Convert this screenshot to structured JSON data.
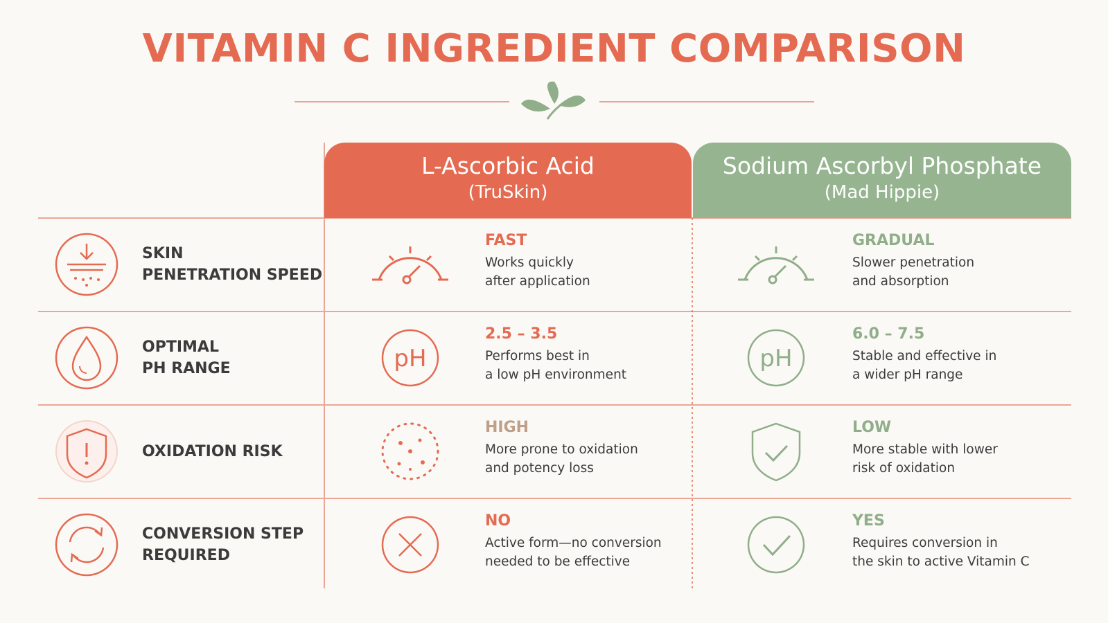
{
  "header": {
    "title": "VITAMIN C INGREDIENT COMPARISON"
  },
  "table": {
    "columns": [
      {
        "name": "L-Ascorbic Acid",
        "subtitle": "(TruSkin)",
        "color": "#e46b51"
      },
      {
        "name": "Sodium Ascorbyl Phosphate",
        "subtitle": "(Mad Hippie)",
        "color": "#95b48f"
      }
    ],
    "rows": [
      {
        "label": [
          "SKIN",
          "PENETRATION SPEED"
        ],
        "cells": [
          {
            "heading": "FAST",
            "color": "#e46b51",
            "lines": [
              "Works quickly",
              "after application"
            ]
          },
          {
            "heading": "GRADUAL",
            "color": "#8fae89",
            "lines": [
              "Slower penetration",
              "and absorption"
            ]
          }
        ]
      },
      {
        "label": [
          "OPTIMAL",
          "PH RANGE"
        ],
        "cells": [
          {
            "heading": "2.5 – 3.5",
            "color": "#e46b51",
            "lines": [
              "Performs best in",
              "a low pH environment"
            ]
          },
          {
            "heading": "6.0 – 7.5",
            "color": "#8fae89",
            "lines": [
              "Stable and effective in",
              "a wider pH range"
            ]
          }
        ]
      },
      {
        "label": [
          "OXIDATION RISK"
        ],
        "cells": [
          {
            "heading": "HIGH",
            "color": "#bf9f88",
            "lines": [
              "More prone to oxidation",
              "and potency loss"
            ]
          },
          {
            "heading": "LOW",
            "color": "#8fae89",
            "lines": [
              "More stable with lower",
              "risk of oxidation"
            ]
          }
        ]
      },
      {
        "label": [
          "CONVERSION STEP",
          "REQUIRED"
        ],
        "cells": [
          {
            "heading": "NO",
            "color": "#e46b51",
            "lines": [
              "Active form—no conversion",
              "needed to be effective"
            ]
          },
          {
            "heading": "YES",
            "color": "#8fae89",
            "lines": [
              "Requires conversion in",
              "the skin to active Vitamin C"
            ]
          }
        ]
      }
    ]
  }
}
